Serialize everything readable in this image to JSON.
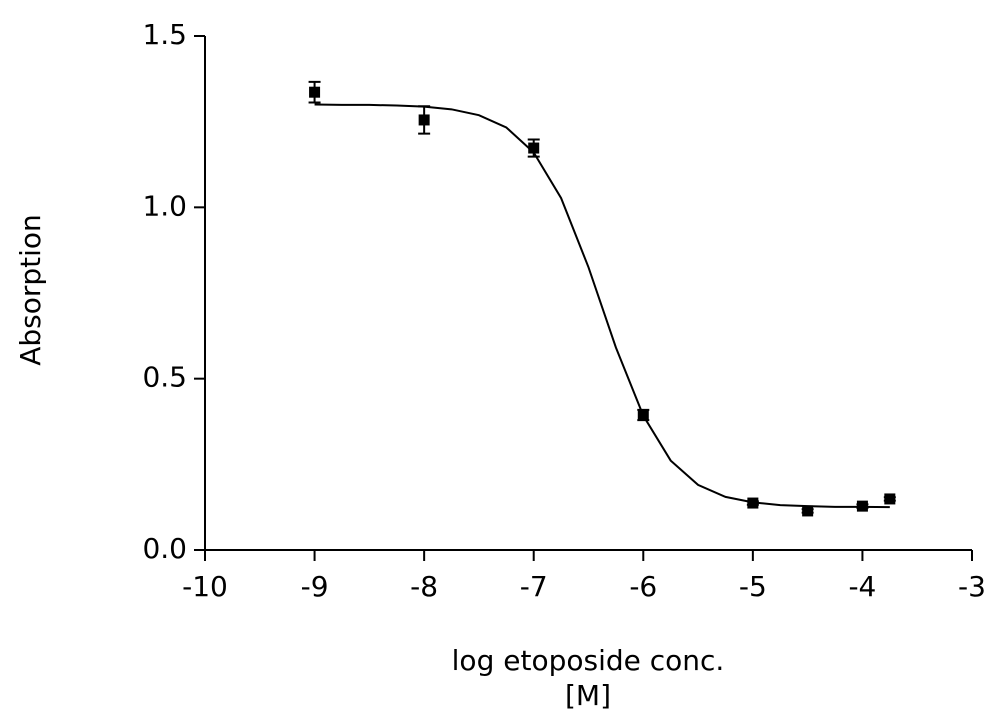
{
  "chart_data": {
    "type": "scatter",
    "ylabel": "Absorption",
    "xlabel": [
      "log etoposide conc.",
      "[M]"
    ],
    "xlim": [
      -10,
      -3
    ],
    "xticks": [
      -10,
      -9,
      -8,
      -7,
      -6,
      -5,
      -4,
      -3
    ],
    "ylim": [
      0,
      1.5
    ],
    "yticks": [
      {
        "value": 0,
        "label": "0.0"
      },
      {
        "value": 0.5,
        "label": "0.5"
      },
      {
        "value": 1,
        "label": "1.0"
      },
      {
        "value": 1.5,
        "label": "1.5"
      }
    ],
    "series": [
      {
        "color": "#000000",
        "x": [
          -9,
          -8,
          -7,
          -6,
          -5,
          -4.5,
          -4,
          -3.75
        ],
        "values": [
          1.336,
          1.255,
          1.173,
          0.394,
          0.137,
          0.114,
          0.128,
          0.149
        ],
        "errors": [
          0.03,
          0.04,
          0.025,
          0.015,
          0.005,
          0.005,
          0.005,
          0.005
        ]
      }
    ],
    "fit": {
      "color": "#000000",
      "x": [
        -9,
        -8.75,
        -8.5,
        -8.25,
        -8,
        -7.75,
        -7.5,
        -7.25,
        -7,
        -6.75,
        -6.5,
        -6.25,
        -6,
        -5.75,
        -5.5,
        -5.25,
        -5,
        -4.75,
        -4.5,
        -4.25,
        -4,
        -3.75
      ],
      "values": [
        1.3,
        1.299,
        1.299,
        1.297,
        1.294,
        1.286,
        1.269,
        1.233,
        1.16,
        1.027,
        0.825,
        0.591,
        0.392,
        0.261,
        0.19,
        0.155,
        0.139,
        0.131,
        0.128,
        0.126,
        0.126,
        0.125
      ]
    }
  }
}
